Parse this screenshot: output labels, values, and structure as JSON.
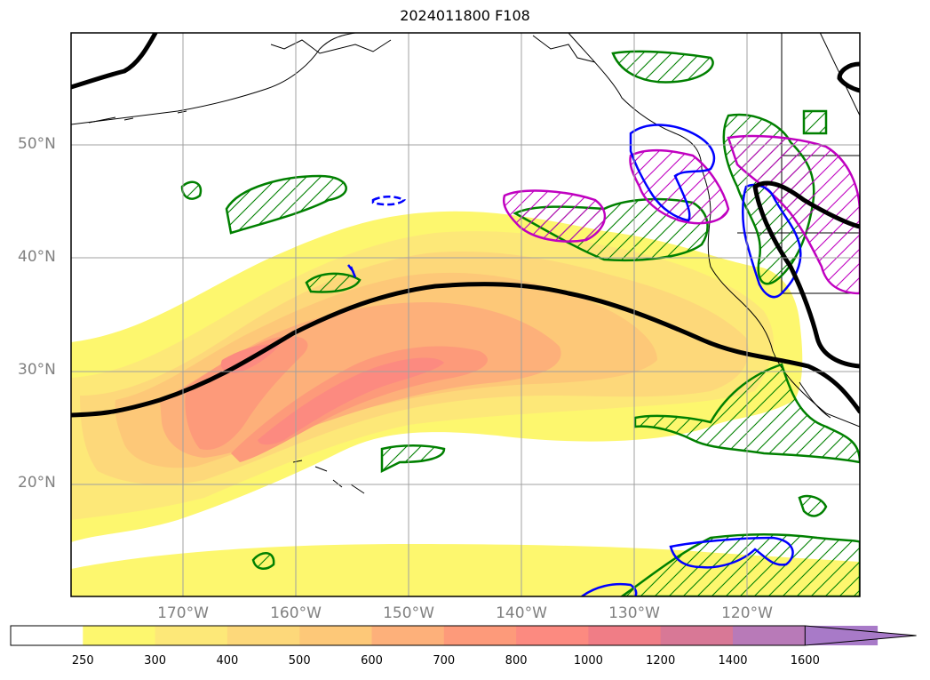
{
  "title": "2024011800 F108",
  "map": {
    "lat_labels": [
      "50°N",
      "40°N",
      "30°N",
      "20°N"
    ],
    "lon_labels": [
      "170°W",
      "160°W",
      "150°W",
      "140°W",
      "130°W",
      "120°W"
    ],
    "colors": {
      "frame": "#000000",
      "grid": "#a0a0a0",
      "land": "#000000",
      "green_contour": "#008000",
      "blue_contour": "#0000ff",
      "magenta_contour": "#c000c0",
      "jet_axis": "#000000"
    }
  },
  "colorbar": {
    "levels": [
      "250",
      "300",
      "400",
      "500",
      "600",
      "700",
      "800",
      "1000",
      "1200",
      "1400",
      "1600"
    ],
    "colors": [
      "#ffffff",
      "#fdf76e",
      "#fde878",
      "#fdd87a",
      "#fdc878",
      "#fdb07a",
      "#fd9a7a",
      "#fc8a80",
      "#f07d86",
      "#d87896",
      "#b87ab8",
      "#a87ac8"
    ],
    "extend": "max"
  }
}
